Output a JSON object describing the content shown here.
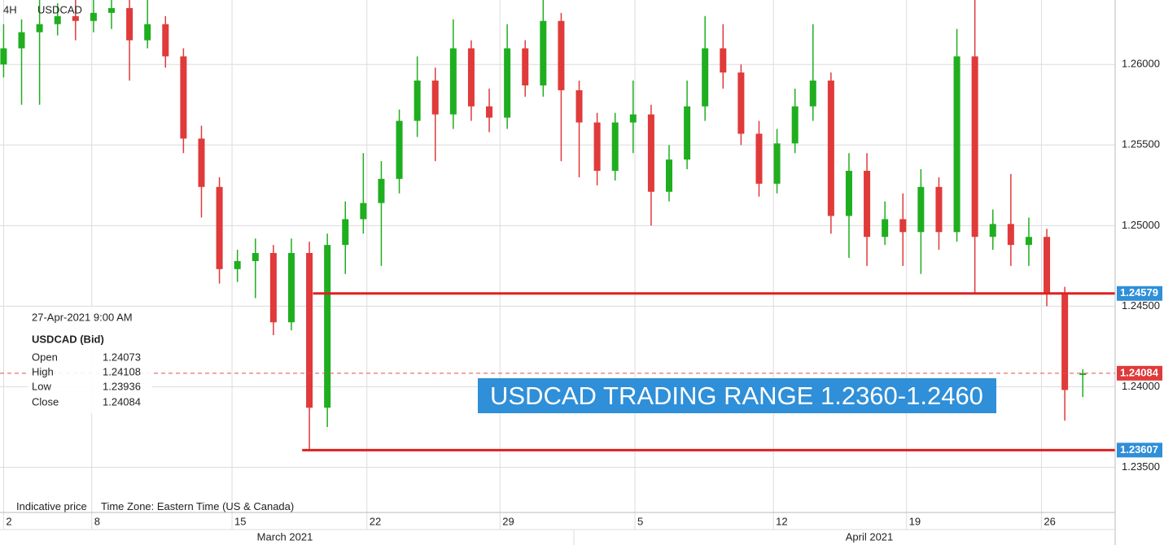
{
  "chart_data": {
    "type": "candlestick",
    "symbol": "USDCAD",
    "timeframe": "4H",
    "up_color": "#1fae1f",
    "down_color": "#e03a3a",
    "x": [
      0,
      1,
      2,
      3,
      4,
      5,
      6,
      7,
      8,
      9,
      10,
      11,
      12,
      13,
      14,
      15,
      16,
      17,
      18,
      19,
      20,
      21,
      22,
      23,
      24,
      25,
      26,
      27,
      28,
      29,
      30,
      31,
      32,
      33,
      34,
      35,
      36,
      37,
      38,
      39,
      40,
      41,
      42,
      43,
      44,
      45,
      46,
      47,
      48,
      49,
      50,
      51,
      52,
      53,
      54,
      55,
      56,
      57,
      58,
      59,
      60
    ],
    "open": [
      1.26,
      1.261,
      1.262,
      1.2625,
      1.263,
      1.2627,
      1.2632,
      1.2635,
      1.2615,
      1.2625,
      1.2605,
      1.2554,
      1.2524,
      1.2473,
      1.2478,
      1.2483,
      1.244,
      1.2483,
      1.2387,
      1.2488,
      1.2504,
      1.2514,
      1.2529,
      1.2565,
      1.259,
      1.2569,
      1.261,
      1.2574,
      1.2567,
      1.261,
      1.2587,
      1.2627,
      1.2584,
      1.2564,
      1.2534,
      1.2564,
      1.2569,
      1.2521,
      1.2541,
      1.2574,
      1.261,
      1.2595,
      1.2557,
      1.2526,
      1.2551,
      1.2574,
      1.259,
      1.2506,
      1.2534,
      1.2493,
      1.2504,
      1.2496,
      1.2524,
      1.2496,
      1.2605,
      1.2493,
      1.2501,
      1.2488,
      1.2493,
      1.2458,
      1.24073
    ],
    "high": [
      1.2625,
      1.2628,
      1.264,
      1.2638,
      1.264,
      1.264,
      1.264,
      1.264,
      1.264,
      1.263,
      1.261,
      1.2562,
      1.253,
      1.2485,
      1.2492,
      1.2488,
      1.2492,
      1.249,
      1.2495,
      1.2515,
      1.2545,
      1.254,
      1.2572,
      1.2605,
      1.2598,
      1.2628,
      1.2615,
      1.2585,
      1.2625,
      1.2615,
      1.264,
      1.2632,
      1.259,
      1.257,
      1.257,
      1.259,
      1.2575,
      1.255,
      1.259,
      1.263,
      1.2625,
      1.26,
      1.2565,
      1.256,
      1.2585,
      1.2625,
      1.2595,
      1.2545,
      1.2545,
      1.2515,
      1.252,
      1.2535,
      1.253,
      1.2622,
      1.264,
      1.251,
      1.2532,
      1.2505,
      1.2498,
      1.2462,
      1.24108
    ],
    "low": [
      1.2592,
      1.2575,
      1.2575,
      1.2618,
      1.2615,
      1.262,
      1.2622,
      1.259,
      1.261,
      1.2598,
      1.2545,
      1.2505,
      1.2464,
      1.2465,
      1.2455,
      1.2432,
      1.2435,
      1.236,
      1.2375,
      1.247,
      1.2495,
      1.2475,
      1.252,
      1.2555,
      1.254,
      1.256,
      1.2565,
      1.2558,
      1.256,
      1.258,
      1.258,
      1.254,
      1.253,
      1.2525,
      1.2528,
      1.2545,
      1.25,
      1.2515,
      1.2535,
      1.2565,
      1.2585,
      1.255,
      1.2518,
      1.252,
      1.2545,
      1.2565,
      1.2495,
      1.248,
      1.2475,
      1.2488,
      1.2475,
      1.247,
      1.2485,
      1.249,
      1.2458,
      1.2485,
      1.2475,
      1.2475,
      1.245,
      1.2379,
      1.23936
    ],
    "close": [
      1.261,
      1.262,
      1.2625,
      1.263,
      1.2627,
      1.2632,
      1.2635,
      1.2615,
      1.2625,
      1.2605,
      1.2554,
      1.2524,
      1.2473,
      1.2478,
      1.2483,
      1.244,
      1.2483,
      1.2387,
      1.2488,
      1.2504,
      1.2514,
      1.2529,
      1.2565,
      1.259,
      1.2569,
      1.261,
      1.2574,
      1.2567,
      1.261,
      1.2587,
      1.2627,
      1.2584,
      1.2564,
      1.2534,
      1.2564,
      1.2569,
      1.2521,
      1.2541,
      1.2574,
      1.261,
      1.2595,
      1.2557,
      1.2526,
      1.2551,
      1.2574,
      1.259,
      1.2506,
      1.2534,
      1.2493,
      1.2504,
      1.2496,
      1.2524,
      1.2496,
      1.2605,
      1.2493,
      1.2501,
      1.2488,
      1.2493,
      1.2458,
      1.2398,
      1.24084
    ],
    "xlim": [
      -0.2,
      61.8
    ],
    "ylim": [
      1.2322,
      1.264
    ],
    "xticks": [
      {
        "value": 0,
        "label": "2"
      },
      {
        "value": 4.9,
        "label": "8"
      },
      {
        "value": 12.7,
        "label": "15"
      },
      {
        "value": 20.2,
        "label": "22"
      },
      {
        "value": 27.6,
        "label": "29"
      },
      {
        "value": 35.1,
        "label": "5"
      },
      {
        "value": 42.8,
        "label": "12"
      },
      {
        "value": 50.2,
        "label": "19"
      },
      {
        "value": 57.7,
        "label": "26"
      }
    ],
    "yticks": [
      {
        "value": 1.235,
        "label": "1.23500"
      },
      {
        "value": 1.24,
        "label": "1.24000"
      },
      {
        "value": 1.245,
        "label": "1.24500"
      },
      {
        "value": 1.25,
        "label": "1.25000"
      },
      {
        "value": 1.255,
        "label": "1.25500"
      },
      {
        "value": 1.26,
        "label": "1.26000"
      }
    ],
    "grid": true,
    "periods": [
      "March 2021",
      "April 2021"
    ],
    "levels": [
      {
        "value": 1.24579,
        "label": "1.24579",
        "x_start": 17.2,
        "color": "#e02020",
        "tag_color": "#2f8fd8"
      },
      {
        "value": 1.23607,
        "label": "1.23607",
        "x_start": 16.6,
        "color": "#e02020",
        "tag_color": "#2f8fd8"
      }
    ],
    "current": {
      "value": 1.24084,
      "label": "1.24084",
      "color": "#e05050",
      "tag_color": "#e03a3a"
    },
    "annotation": "USDCAD TRADING RANGE 1.2360-1.2460",
    "info": {
      "time": "27-Apr-2021 9:00 AM",
      "title": "USDCAD (Bid)",
      "rows": [
        [
          "Open",
          "1.24073"
        ],
        [
          "High",
          "1.24108"
        ],
        [
          "Low",
          "1.23936"
        ],
        [
          "Close",
          "1.24084"
        ]
      ]
    },
    "footer": [
      "Indicative price",
      "Time Zone: Eastern Time (US & Canada)"
    ]
  }
}
